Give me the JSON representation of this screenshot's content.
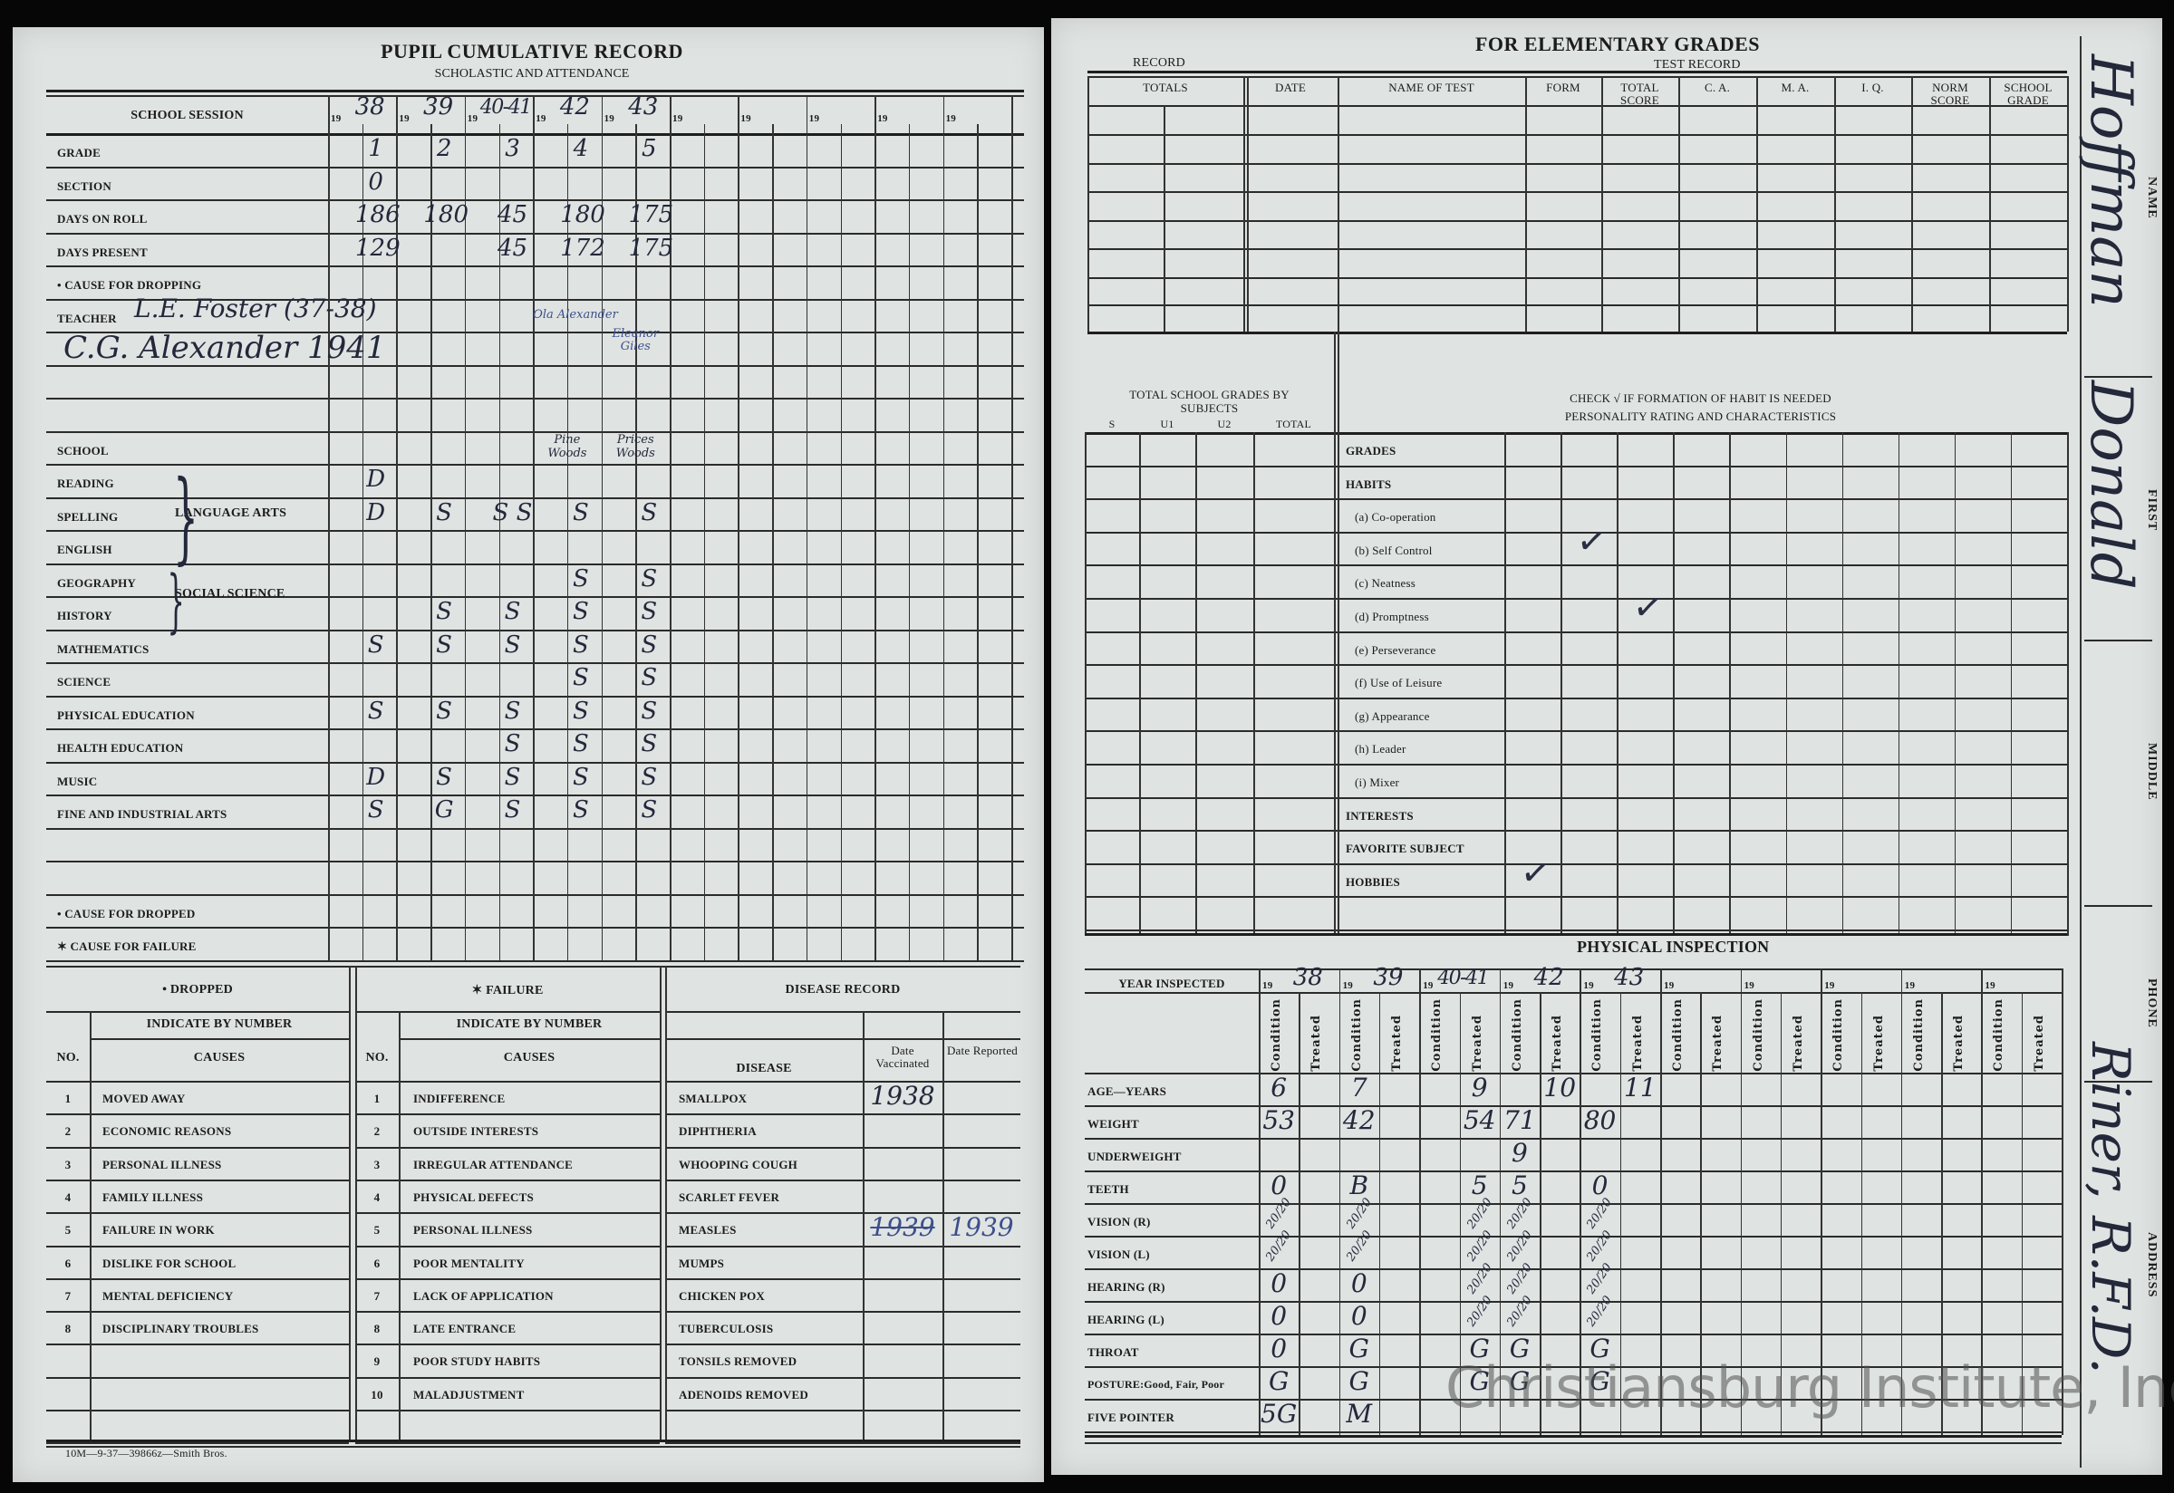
{
  "left_page": {
    "title": "PUPIL CUMULATIVE RECORD",
    "subtitle": "SCHOLASTIC AND ATTENDANCE",
    "session_label": "SCHOOL SESSION",
    "year_prefix": "19",
    "years": [
      "38",
      "39",
      "40-41",
      "42",
      "43",
      "",
      "",
      "",
      "",
      ""
    ],
    "rows": [
      {
        "label": "GRADE",
        "values": [
          "1",
          "2",
          "3",
          "4",
          "5"
        ]
      },
      {
        "label": "SECTION",
        "values": [
          "0",
          "",
          "",
          "",
          ""
        ]
      },
      {
        "label": "DAYS ON ROLL",
        "values": [
          "186",
          "180",
          "45",
          "180",
          "175"
        ]
      },
      {
        "label": "DAYS PRESENT",
        "values": [
          "129",
          "",
          "45",
          "172",
          "175"
        ]
      },
      {
        "label": "• CAUSE FOR DROPPING",
        "values": [
          "",
          "",
          "",
          "",
          ""
        ]
      },
      {
        "label": "TEACHER",
        "values": [
          "",
          "",
          "",
          "",
          ""
        ]
      },
      {
        "label": "",
        "values": [
          "",
          "",
          "",
          "",
          ""
        ]
      },
      {
        "label": "",
        "values": [
          "",
          "",
          "",
          "",
          ""
        ]
      },
      {
        "label": "",
        "values": [
          "",
          "",
          "",
          "",
          ""
        ]
      },
      {
        "label": "SCHOOL",
        "values": [
          "",
          "",
          "",
          "Pine Woods",
          "Prices Woods"
        ]
      },
      {
        "label": "READING",
        "values": [
          "D",
          "",
          "",
          "",
          ""
        ]
      },
      {
        "label": "SPELLING",
        "values": [
          "D",
          "S",
          "S S",
          "S",
          "S"
        ]
      },
      {
        "label": "ENGLISH",
        "values": [
          "",
          "",
          "",
          "",
          ""
        ]
      },
      {
        "label": "GEOGRAPHY",
        "values": [
          "",
          "",
          "",
          "S",
          "S"
        ]
      },
      {
        "label": "HISTORY",
        "values": [
          "",
          "S",
          "S",
          "S",
          "S"
        ]
      },
      {
        "label": "MATHEMATICS",
        "values": [
          "S",
          "S",
          "S",
          "S",
          "S"
        ]
      },
      {
        "label": "SCIENCE",
        "values": [
          "",
          "",
          "",
          "S",
          "S"
        ]
      },
      {
        "label": "PHYSICAL EDUCATION",
        "values": [
          "S",
          "S",
          "S",
          "S",
          "S"
        ]
      },
      {
        "label": "HEALTH EDUCATION",
        "values": [
          "",
          "",
          "S",
          "S",
          "S"
        ]
      },
      {
        "label": "MUSIC",
        "values": [
          "D",
          "S",
          "S",
          "S",
          "S"
        ]
      },
      {
        "label": "FINE AND INDUSTRIAL ARTS",
        "values": [
          "S",
          "G",
          "S",
          "S",
          "S"
        ]
      },
      {
        "label": "",
        "values": [
          "",
          "",
          "",
          "",
          ""
        ]
      },
      {
        "label": "",
        "values": [
          "",
          "",
          "",
          "",
          ""
        ]
      },
      {
        "label": "• CAUSE FOR DROPPED",
        "values": [
          "",
          "",
          "",
          "",
          ""
        ]
      },
      {
        "label": "✶ CAUSE FOR FAILURE",
        "values": [
          "",
          "",
          "",
          "",
          ""
        ]
      }
    ],
    "language_arts": "LANGUAGE ARTS",
    "social_science": "SOCIAL SCIENCE",
    "teacher_handwritten_1": "L.E. Foster (37-38)",
    "teacher_handwritten_2": "C.G. Alexander 1941",
    "teacher_1942": "Ola Alexander",
    "teacher_1943": "Eleanor Giles",
    "dropped": {
      "heading": "• DROPPED",
      "indicate": "INDICATE BY NUMBER",
      "no_label": "NO.",
      "causes_label": "CAUSES",
      "items": [
        "MOVED AWAY",
        "ECONOMIC REASONS",
        "PERSONAL ILLNESS",
        "FAMILY ILLNESS",
        "FAILURE IN WORK",
        "DISLIKE FOR SCHOOL",
        "MENTAL DEFICIENCY",
        "DISCIPLINARY TROUBLES"
      ]
    },
    "failure": {
      "heading": "✶ FAILURE",
      "indicate": "INDICATE BY NUMBER",
      "no_label": "NO.",
      "causes_label": "CAUSES",
      "items": [
        "INDIFFERENCE",
        "OUTSIDE INTERESTS",
        "IRREGULAR ATTENDANCE",
        "PHYSICAL DEFECTS",
        "PERSONAL ILLNESS",
        "POOR MENTALITY",
        "LACK OF APPLICATION",
        "LATE ENTRANCE",
        "POOR STUDY HABITS",
        "MALADJUSTMENT"
      ]
    },
    "disease": {
      "heading": "DISEASE RECORD",
      "disease_label": "DISEASE",
      "vaccinated_label": "Date Vaccinated",
      "reported_label": "Date Reported",
      "items": [
        {
          "name": "SMALLPOX",
          "vaccinated": "1938",
          "reported": ""
        },
        {
          "name": "DIPHTHERIA",
          "vaccinated": "",
          "reported": ""
        },
        {
          "name": "WHOOPING COUGH",
          "vaccinated": "",
          "reported": ""
        },
        {
          "name": "SCARLET FEVER",
          "vaccinated": "",
          "reported": ""
        },
        {
          "name": "MEASLES",
          "vaccinated": "1939",
          "reported": "1939"
        },
        {
          "name": "MUMPS",
          "vaccinated": "",
          "reported": ""
        },
        {
          "name": "CHICKEN POX",
          "vaccinated": "",
          "reported": ""
        },
        {
          "name": "TUBERCULOSIS",
          "vaccinated": "",
          "reported": ""
        },
        {
          "name": "TONSILS REMOVED",
          "vaccinated": "",
          "reported": ""
        },
        {
          "name": "ADENOIDS REMOVED",
          "vaccinated": "",
          "reported": ""
        }
      ]
    },
    "footer": "10M—9-37—39866z—Smith Bros."
  },
  "right_page": {
    "title": "FOR ELEMENTARY GRADES",
    "record_label": "RECORD",
    "test_record_label": "TEST RECORD",
    "test_columns": [
      "TOTALS",
      "DATE",
      "NAME OF TEST",
      "FORM",
      "TOTAL SCORE",
      "C. A.",
      "M. A.",
      "I. Q.",
      "NORM SCORE",
      "SCHOOL GRADE"
    ],
    "totals_heading": "TOTAL SCHOOL GRADES BY SUBJECTS",
    "subject_columns": [
      "S",
      "U1",
      "U2",
      "TOTAL"
    ],
    "habit_heading_1": "CHECK √ IF FORMATION OF HABIT IS NEEDED",
    "habit_heading_2": "PERSONALITY RATING AND CHARACTERISTICS",
    "habit_rows": [
      "GRADES",
      "HABITS",
      "(a) Co-operation",
      "(b) Self Control",
      "(c) Neatness",
      "(d) Promptness",
      "(e) Perseverance",
      "(f) Use of Leisure",
      "(g) Appearance",
      "(h) Leader",
      "(i) Mixer",
      "INTERESTS",
      "FAVORITE SUBJECT",
      "HOBBIES"
    ],
    "checks": [
      {
        "row": "(b) Self Control",
        "column": 2
      },
      {
        "row": "(d) Promptness",
        "column": 3
      },
      {
        "row": "HOBBIES",
        "column": 1
      }
    ],
    "physical": {
      "title": "PHYSICAL INSPECTION",
      "year_label": "YEAR INSPECTED",
      "year_prefix": "19",
      "years": [
        "38",
        "39",
        "40-41",
        "42",
        "43",
        "",
        "",
        "",
        "",
        ""
      ],
      "condition_label": "Condition",
      "treated_label": "Treated",
      "rows": [
        {
          "label": "AGE—YEARS",
          "cells": [
            "6",
            "",
            "7",
            "",
            "",
            "9",
            "",
            "10",
            "",
            "11"
          ]
        },
        {
          "label": "WEIGHT",
          "cells": [
            "53",
            "",
            "42",
            "",
            "",
            "54",
            "71",
            "",
            "80",
            ""
          ]
        },
        {
          "label": "UNDERWEIGHT",
          "cells": [
            "",
            "",
            "",
            "",
            "",
            "",
            "9",
            "",
            "",
            ""
          ]
        },
        {
          "label": "TEETH",
          "cells": [
            "0",
            "",
            "B",
            "",
            "",
            "5",
            "5",
            "",
            "0",
            ""
          ]
        },
        {
          "label": "VISION (R)",
          "cells": [
            "20/20",
            "",
            "20/20",
            "",
            "",
            "20/20",
            "20/20",
            "",
            "20/20",
            ""
          ]
        },
        {
          "label": "VISION (L)",
          "cells": [
            "20/20",
            "",
            "20/20",
            "",
            "",
            "20/20",
            "20/20",
            "",
            "20/20",
            ""
          ]
        },
        {
          "label": "HEARING (R)",
          "cells": [
            "0",
            "",
            "0",
            "",
            "",
            "20/20",
            "20/20",
            "",
            "20/20",
            ""
          ]
        },
        {
          "label": "HEARING (L)",
          "cells": [
            "0",
            "",
            "0",
            "",
            "",
            "20/20",
            "20/20",
            "",
            "20/20",
            ""
          ]
        },
        {
          "label": "THROAT",
          "cells": [
            "0",
            "",
            "G",
            "",
            "",
            "G",
            "G",
            "",
            "G",
            ""
          ]
        },
        {
          "label": "POSTURE:Good, Fair, Poor",
          "cells": [
            "G",
            "",
            "G",
            "",
            "",
            "G",
            "G",
            "",
            "G",
            ""
          ]
        },
        {
          "label": "FIVE POINTER",
          "cells": [
            "5G",
            "",
            "M",
            "",
            "",
            "",
            "",
            "",
            "",
            ""
          ]
        }
      ]
    },
    "strip": {
      "name_label": "NAME",
      "first_label": "FIRST",
      "middle_label": "MIDDLE",
      "phone_label": "PHONE",
      "address_label": "ADDRESS",
      "name_value": "Hoffman",
      "first_value": "Donald",
      "address_value": "Riner, R.F.D."
    },
    "watermark": "Christiansburg Institute, Inc"
  }
}
